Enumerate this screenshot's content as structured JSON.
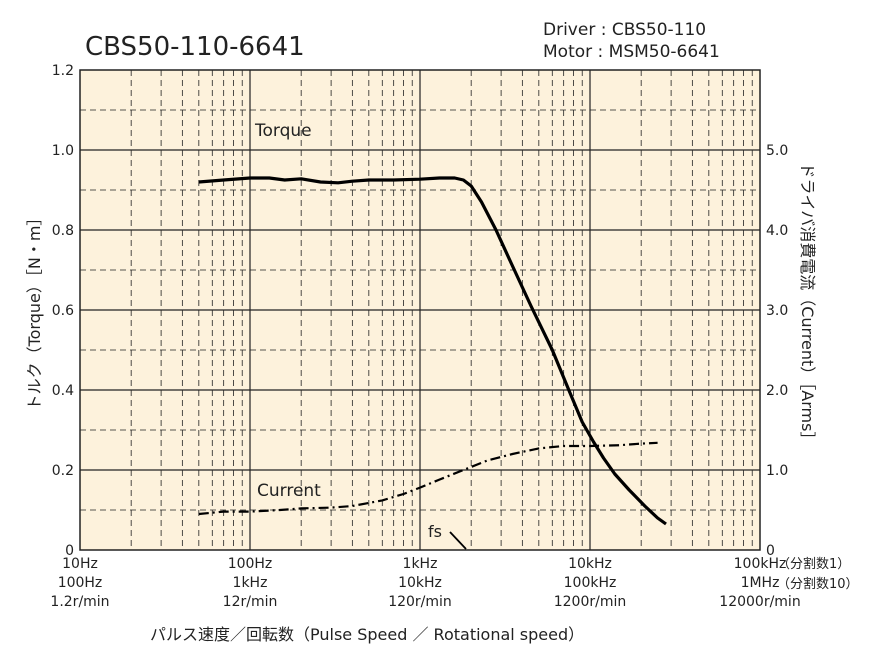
{
  "title": "CBS50-110-6641",
  "driver_label": "Driver : CBS50-110",
  "motor_label": "Motor : MSM50-6641",
  "y_left_label": "トルク（Torque）［N・m］",
  "y_right_label": "ドライバ消費電流（Current）［Arms］",
  "x_label": "パルス速度／回転数（Pulse Speed ／ Rotational speed）",
  "x_ticks": [
    {
      "row1": "10Hz",
      "row2": "100Hz",
      "row3": "1.2r/min"
    },
    {
      "row1": "100Hz",
      "row2": "1kHz",
      "row3": "12r/min"
    },
    {
      "row1": "1kHz",
      "row2": "10kHz",
      "row3": "120r/min"
    },
    {
      "row1": "10kHz",
      "row2": "100kHz",
      "row3": "1200r/min"
    },
    {
      "row1": "100kHz",
      "row2": "1MHz",
      "row3": "12000r/min"
    }
  ],
  "x_note_1": "（分割数1）",
  "x_note_10": "（分割数10）",
  "y_left_ticks": [
    "0",
    "0.2",
    "0.4",
    "0.6",
    "0.8",
    "1.0",
    "1.2"
  ],
  "y_right_ticks": [
    "0",
    "1.0",
    "2.0",
    "3.0",
    "4.0",
    "5.0"
  ],
  "label_torque": "Torque",
  "label_current": "Current",
  "label_fs": "fs",
  "colors": {
    "plot_bg": "#fdf2dc",
    "grid": "#222222",
    "curve": "#000000"
  },
  "chart_data": {
    "type": "line",
    "x_scale": "log",
    "x_unit": "Hz (division 1)",
    "xlim": [
      10,
      100000
    ],
    "ylim_left": [
      0,
      1.2
    ],
    "ylim_right": [
      0,
      6.0
    ],
    "series": [
      {
        "name": "Torque",
        "axis": "left",
        "style": "solid",
        "x": [
          50,
          70,
          100,
          130,
          160,
          200,
          260,
          330,
          400,
          500,
          700,
          1000,
          1300,
          1600,
          1800,
          2000,
          2300,
          2800,
          3500,
          4500,
          6000,
          7500,
          9000,
          10500,
          12000,
          14000,
          17000,
          21000,
          25000,
          28000
        ],
        "y": [
          0.92,
          0.925,
          0.93,
          0.93,
          0.925,
          0.928,
          0.92,
          0.918,
          0.922,
          0.925,
          0.925,
          0.927,
          0.93,
          0.93,
          0.925,
          0.91,
          0.87,
          0.8,
          0.71,
          0.61,
          0.5,
          0.4,
          0.32,
          0.27,
          0.23,
          0.19,
          0.15,
          0.11,
          0.08,
          0.065
        ]
      },
      {
        "name": "Current",
        "axis": "right",
        "style": "dash-dot",
        "x": [
          50,
          70,
          100,
          150,
          200,
          300,
          400,
          600,
          800,
          1000,
          1300,
          1800,
          2500,
          3500,
          5000,
          7000,
          10000,
          15000,
          20000,
          25000
        ],
        "y": [
          0.45,
          0.48,
          0.48,
          0.5,
          0.52,
          0.53,
          0.55,
          0.62,
          0.7,
          0.78,
          0.88,
          1.0,
          1.12,
          1.2,
          1.27,
          1.3,
          1.3,
          1.31,
          1.33,
          1.34
        ]
      }
    ]
  }
}
